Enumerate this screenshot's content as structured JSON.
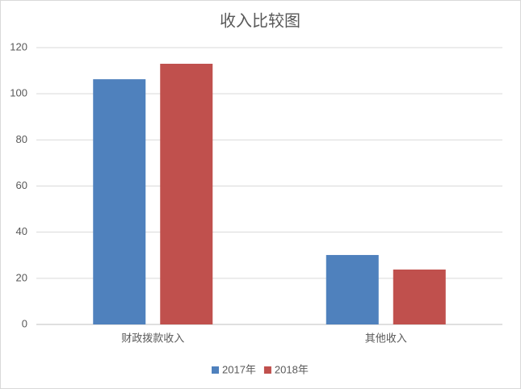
{
  "chart_data": {
    "type": "bar",
    "title": "收入比较图",
    "categories": [
      "财政拨款收入",
      "其他收入"
    ],
    "series": [
      {
        "name": "2017年",
        "color": "#4f81bd",
        "values": [
          106.3,
          30.1
        ]
      },
      {
        "name": "2018年",
        "color": "#c0504d",
        "values": [
          113,
          23.8
        ]
      }
    ],
    "ylim": [
      0,
      120
    ],
    "yticks": [
      0,
      20,
      40,
      60,
      80,
      100,
      120
    ],
    "grid": true,
    "legend": "bottom"
  }
}
